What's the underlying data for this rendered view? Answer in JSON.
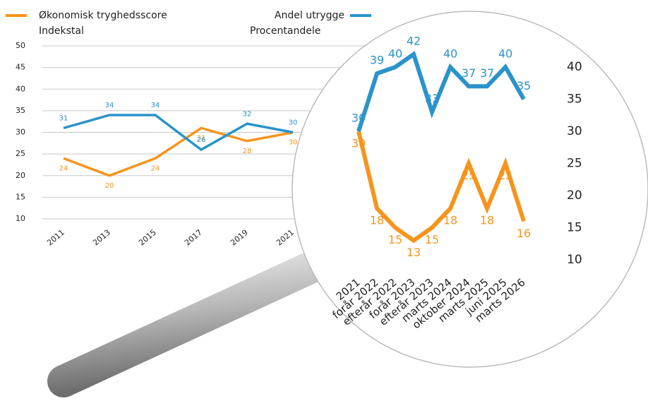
{
  "chart_data": [
    {
      "type": "line",
      "categories": [
        "2011",
        "2013",
        "2015",
        "2017",
        "2019",
        "2021"
      ],
      "series": [
        {
          "name": "Økonomisk tryghedsscore",
          "unit": "Indekstal",
          "color": "#f7941d",
          "values": [
            24,
            20,
            24,
            31,
            28,
            30
          ]
        },
        {
          "name": "Andel utrygge",
          "unit": "Procentandele",
          "color": "#2a93c9",
          "values": [
            31,
            34,
            34,
            26,
            32,
            30
          ]
        }
      ],
      "ylim": [
        10,
        50
      ],
      "yticks": [
        10,
        15,
        20,
        25,
        30,
        35,
        40,
        45,
        50
      ],
      "grid": true
    },
    {
      "type": "line",
      "categories": [
        "2021",
        "forår 2022",
        "efterår 2022",
        "forår 2023",
        "efterår 2023",
        "marts 2024",
        "oktober 2024",
        "marts 2025",
        "juni 2025",
        "marts 2026"
      ],
      "series": [
        {
          "name": "Økonomisk tryghedsscore",
          "color": "#f7941d",
          "values": [
            30,
            18,
            15,
            13,
            15,
            18,
            25,
            18,
            25,
            16
          ]
        },
        {
          "name": "Andel utrygge",
          "color": "#2a93c9",
          "values": [
            30,
            39,
            40,
            42,
            33,
            40,
            37,
            37,
            40,
            35
          ]
        }
      ],
      "ylim": [
        10,
        40
      ],
      "yticks": [
        10,
        15,
        20,
        25,
        30,
        35,
        40
      ],
      "grid": false
    }
  ]
}
